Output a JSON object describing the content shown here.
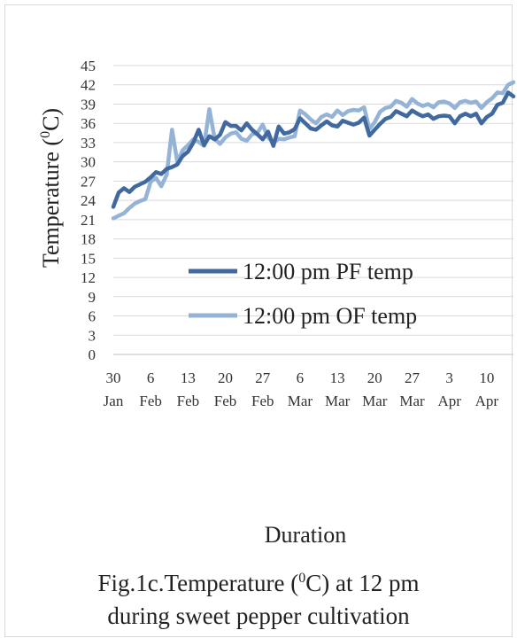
{
  "chart_data": {
    "type": "line",
    "ylabel": "Temperature (",
    "ylabel_sup": "0",
    "ylabel_suffix": "C)",
    "xlabel": "Duration",
    "ylim": [
      0,
      45
    ],
    "yticks": [
      0,
      3,
      6,
      9,
      12,
      15,
      18,
      21,
      24,
      27,
      30,
      33,
      36,
      39,
      42,
      45
    ],
    "grid": true,
    "legend_position": "center-right",
    "x_tick_labels": [
      {
        "day": "30",
        "month": "Jan"
      },
      {
        "day": "6",
        "month": "Feb"
      },
      {
        "day": "13",
        "month": "Feb"
      },
      {
        "day": "20",
        "month": "Feb"
      },
      {
        "day": "27",
        "month": "Feb"
      },
      {
        "day": "6",
        "month": "Mar"
      },
      {
        "day": "13",
        "month": "Mar"
      },
      {
        "day": "20",
        "month": "Mar"
      },
      {
        "day": "27",
        "month": "Mar"
      },
      {
        "day": "3",
        "month": "Apr"
      },
      {
        "day": "10",
        "month": "Apr"
      }
    ],
    "x_dates": [
      "30 Jan",
      "31 Jan",
      "1 Feb",
      "2 Feb",
      "3 Feb",
      "4 Feb",
      "5 Feb",
      "6 Feb",
      "7 Feb",
      "8 Feb",
      "9 Feb",
      "10 Feb",
      "11 Feb",
      "12 Feb",
      "13 Feb",
      "14 Feb",
      "15 Feb",
      "16 Feb",
      "17 Feb",
      "18 Feb",
      "19 Feb",
      "20 Feb",
      "21 Feb",
      "22 Feb",
      "23 Feb",
      "24 Feb",
      "25 Feb",
      "26 Feb",
      "27 Feb",
      "28 Feb",
      "1 Mar",
      "2 Mar",
      "3 Mar",
      "4 Mar",
      "5 Mar",
      "6 Mar",
      "7 Mar",
      "8 Mar",
      "9 Mar",
      "10 Mar",
      "11 Mar",
      "12 Mar",
      "13 Mar",
      "14 Mar",
      "15 Mar",
      "16 Mar",
      "17 Mar",
      "18 Mar",
      "19 Mar",
      "20 Mar",
      "21 Mar",
      "22 Mar",
      "23 Mar",
      "24 Mar",
      "25 Mar",
      "26 Mar",
      "27 Mar",
      "28 Mar",
      "29 Mar",
      "30 Mar",
      "31 Mar",
      "1 Apr",
      "2 Apr",
      "3 Apr",
      "4 Apr",
      "5 Apr",
      "6 Apr",
      "7 Apr",
      "8 Apr",
      "9 Apr",
      "10 Apr",
      "11 Apr",
      "12 Apr",
      "13 Apr",
      "14 Apr",
      "15 Apr",
      "16 Apr"
    ],
    "series": [
      {
        "name": "12:00 pm PF temp",
        "color": "#41699f",
        "values": [
          23.0,
          25.2,
          25.9,
          25.3,
          26.1,
          26.5,
          26.9,
          27.6,
          28.4,
          28.1,
          28.9,
          29.2,
          29.6,
          30.9,
          31.6,
          33.0,
          35.0,
          32.6,
          34.0,
          33.5,
          34.2,
          36.2,
          35.6,
          35.6,
          34.9,
          36.0,
          35.0,
          34.3,
          33.5,
          34.7,
          32.5,
          35.5,
          34.4,
          34.6,
          35.1,
          36.8,
          36.0,
          35.2,
          35.0,
          35.7,
          36.3,
          35.7,
          35.5,
          36.4,
          36.1,
          35.8,
          36.1,
          36.9,
          34.1,
          35.0,
          35.9,
          36.7,
          37.0,
          37.9,
          37.5,
          37.1,
          38.0,
          37.5,
          37.1,
          37.4,
          36.7,
          37.1,
          37.2,
          37.1,
          36.0,
          37.1,
          37.5,
          37.1,
          37.5,
          36.0,
          37.0,
          37.5,
          38.9,
          39.2,
          40.8,
          40.2
        ]
      },
      {
        "name": "12:00 pm OF temp",
        "color": "#95b3d7",
        "values": [
          21.2,
          21.6,
          22.0,
          22.8,
          23.5,
          23.9,
          24.2,
          26.9,
          27.5,
          26.2,
          28.0,
          35.0,
          30.0,
          31.8,
          32.6,
          33.5,
          33.1,
          32.5,
          38.2,
          33.6,
          32.8,
          33.8,
          34.4,
          34.6,
          33.6,
          33.3,
          34.3,
          34.5,
          35.8,
          33.8,
          33.0,
          33.6,
          33.5,
          33.8,
          34.0,
          38.0,
          37.4,
          36.6,
          36.0,
          37.0,
          37.4,
          37.0,
          38.0,
          37.3,
          37.9,
          38.1,
          38.0,
          38.5,
          35.1,
          36.2,
          37.8,
          38.4,
          38.6,
          39.5,
          39.2,
          38.6,
          39.8,
          39.1,
          38.7,
          39.0,
          38.5,
          39.3,
          39.4,
          39.1,
          38.4,
          39.3,
          39.5,
          39.2,
          39.4,
          38.4,
          39.3,
          39.9,
          40.8,
          40.7,
          42.0,
          42.4
        ]
      }
    ]
  },
  "caption": {
    "line1_prefix": "Fig.1c.Temperature (",
    "line1_sup": "0",
    "line1_suffix": "C) at 12 pm",
    "line2": "during sweet pepper cultivation"
  }
}
